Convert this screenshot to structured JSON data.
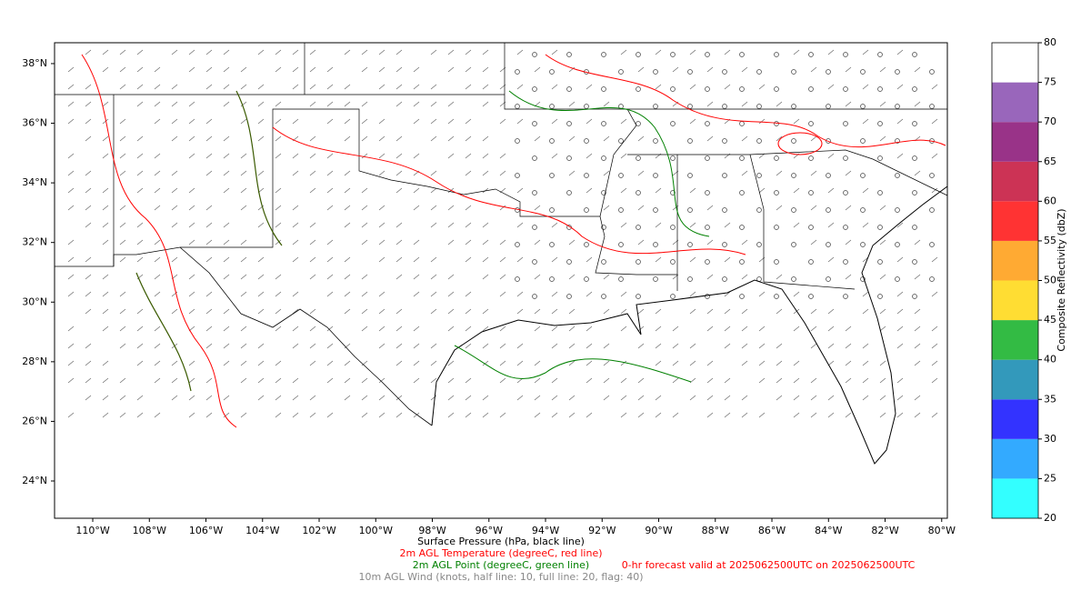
{
  "map": {
    "xlim": [
      -111.35,
      -79.8
    ],
    "ylim": [
      22.75,
      38.7
    ],
    "xticks": [
      {
        "value": -110,
        "label": "110°W"
      },
      {
        "value": -108,
        "label": "108°W"
      },
      {
        "value": -106,
        "label": "106°W"
      },
      {
        "value": -104,
        "label": "104°W"
      },
      {
        "value": -102,
        "label": "102°W"
      },
      {
        "value": -100,
        "label": "100°W"
      },
      {
        "value": -98,
        "label": "98°W"
      },
      {
        "value": -96,
        "label": "96°W"
      },
      {
        "value": -94,
        "label": "94°W"
      },
      {
        "value": -92,
        "label": "92°W"
      },
      {
        "value": -90,
        "label": "90°W"
      },
      {
        "value": -88,
        "label": "88°W"
      },
      {
        "value": -86,
        "label": "86°W"
      },
      {
        "value": -84,
        "label": "84°W"
      },
      {
        "value": -82,
        "label": "82°W"
      },
      {
        "value": -80,
        "label": "80°W"
      }
    ],
    "yticks": [
      {
        "value": 24,
        "label": "24°N"
      },
      {
        "value": 26,
        "label": "26°N"
      },
      {
        "value": 28,
        "label": "28°N"
      },
      {
        "value": 30,
        "label": "30°N"
      },
      {
        "value": 32,
        "label": "32°N"
      },
      {
        "value": 34,
        "label": "34°N"
      },
      {
        "value": 36,
        "label": "36°N"
      },
      {
        "value": 38,
        "label": "38°N"
      }
    ]
  },
  "colorbar": {
    "label": "Composite Reflectivity (dbZ)",
    "lim": [
      20,
      80
    ],
    "ticks": [
      20,
      25,
      30,
      35,
      40,
      45,
      50,
      55,
      60,
      65,
      70,
      75,
      80
    ],
    "colors": [
      "#33ffff",
      "#33aaff",
      "#3333ff",
      "#3399bb",
      "#33bb44",
      "#ffdd33",
      "#ffaa33",
      "#ff3333",
      "#cc3355",
      "#993388",
      "#9966bb",
      "#ffffff"
    ]
  },
  "captions": {
    "pressure": "Surface Pressure (hPa, black line)",
    "temperature": "2m AGL Temperature (degreeC, red line)",
    "dewpoint": "2m AGL Point (degreeC, green line)",
    "valid": "0-hr forecast valid at 2025062500UTC on 2025062500UTC",
    "wind": "10m AGL Wind (knots, half line: 10, full line: 20, flag: 40)"
  }
}
